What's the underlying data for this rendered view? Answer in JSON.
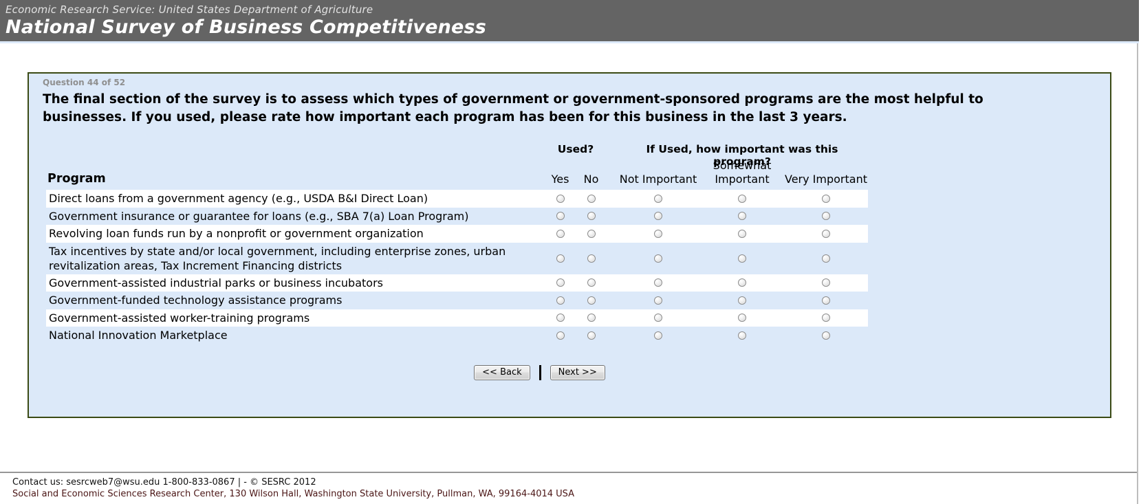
{
  "header": {
    "agency_line": "Economic Research Service: United States Department of Agriculture",
    "site_title": "National Survey of Business Competitiveness"
  },
  "survey": {
    "question_counter": "Question 44 of 52",
    "question_text": "The final section of the survey is to assess which types of government or government-sponsored programs are the most helpful to businesses. If you used, please rate how important each program has been for this business in the last 3 years.",
    "table": {
      "program_header": "Program",
      "used_header": "Used?",
      "importance_header": "If Used, how important was this program?",
      "used_options": [
        "Yes",
        "No"
      ],
      "importance_options": [
        "Not Important",
        "Somewhat Important",
        "Very Important"
      ],
      "rows": [
        "Direct loans from a government agency (e.g., USDA B&I Direct Loan)",
        "Government insurance or guarantee for loans (e.g., SBA 7(a) Loan Program)",
        "Revolving loan funds run by a nonprofit or government organization",
        "Tax incentives by state and/or local government, including enterprise zones, urban revitalization areas, Tax Increment Financing districts",
        "Government-assisted industrial parks or business incubators",
        "Government-funded technology assistance programs",
        "Government-assisted worker-training programs",
        "National Innovation Marketplace"
      ]
    },
    "buttons": {
      "back": "<< Back",
      "next": "Next >>"
    }
  },
  "footer": {
    "line1": "Contact us: sesrcweb7@wsu.edu 1-800-833-0867 | - © SESRC 2012",
    "line2": "Social and Economic Sciences Research Center, 130 Wilson Hall, Washington State University, Pullman, WA, 99164-4014 USA"
  },
  "colors": {
    "header_bg": "#646464",
    "panel_bg": "#dce9f9",
    "panel_border": "#3a4a14",
    "row_stripe": "#ffffff",
    "footer_address": "#4a1515"
  }
}
